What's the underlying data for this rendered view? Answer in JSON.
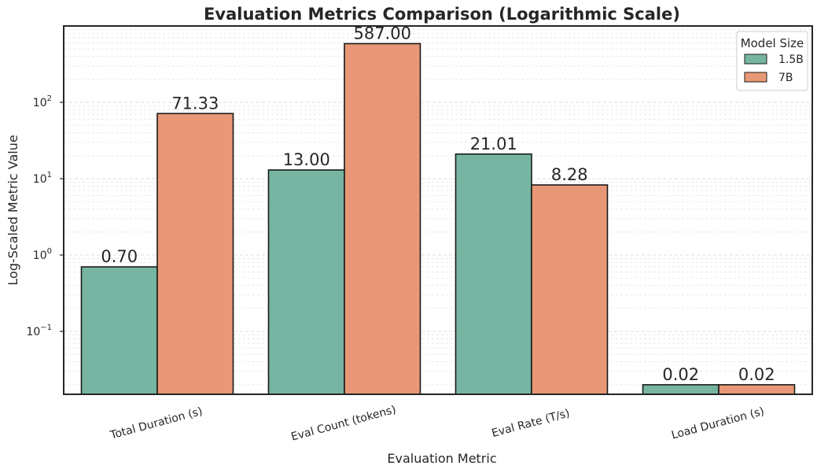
{
  "chart_data": {
    "type": "bar",
    "title": "Evaluation Metrics Comparison (Logarithmic Scale)",
    "xlabel": "Evaluation Metric",
    "ylabel": "Log-Scaled Metric Value",
    "yscale": "log",
    "ylim": [
      0.015,
      1000
    ],
    "grid": true,
    "legend_placement": "top-right",
    "legend_title": "Model Size",
    "categories": [
      "Total Duration (s)",
      "Eval Count (tokens)",
      "Eval Rate (T/s)",
      "Load Duration (s)"
    ],
    "series": [
      {
        "name": "1.5B",
        "color": "#76b5a1",
        "values": [
          0.7,
          13.0,
          21.01,
          0.02
        ],
        "labels": [
          "0.70",
          "13.00",
          "21.01",
          "0.02"
        ]
      },
      {
        "name": "7B",
        "color": "#e89876",
        "values": [
          71.33,
          587.0,
          8.28,
          0.02
        ],
        "labels": [
          "71.33",
          "587.00",
          "8.28",
          "0.02"
        ]
      }
    ],
    "yticks": [
      {
        "value": 0.1,
        "base": "10",
        "exp": "−1"
      },
      {
        "value": 1,
        "base": "10",
        "exp": "0"
      },
      {
        "value": 10,
        "base": "10",
        "exp": "1"
      },
      {
        "value": 100,
        "base": "10",
        "exp": "2"
      }
    ]
  }
}
